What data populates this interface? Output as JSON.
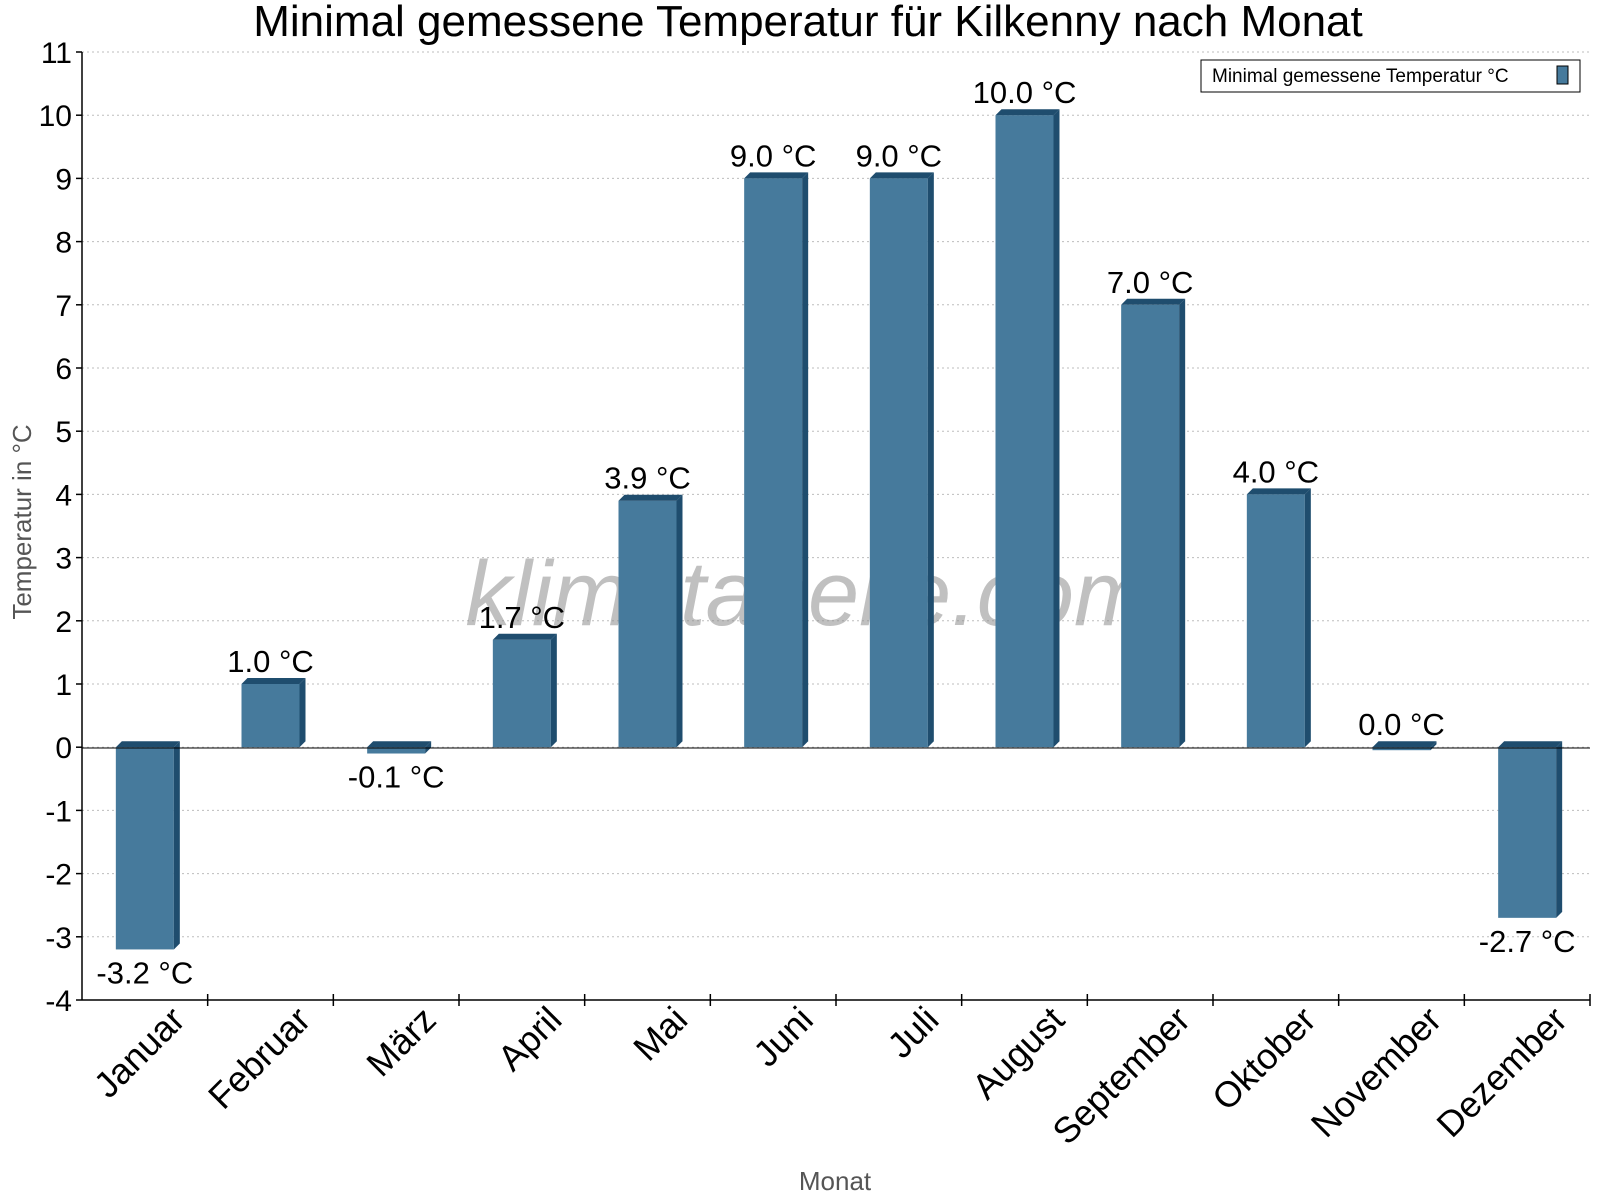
{
  "chart_data": {
    "type": "bar",
    "title": "Minimal gemessene Temperatur für Kilkenny nach Monat",
    "xlabel": "Monat",
    "ylabel": "Temperatur in °C",
    "categories": [
      "Januar",
      "Februar",
      "März",
      "April",
      "Mai",
      "Juni",
      "Juli",
      "August",
      "September",
      "Oktober",
      "November",
      "Dezember"
    ],
    "series": [
      {
        "name": "Minimal gemessene Temperatur °C",
        "values": [
          -3.2,
          1.0,
          -0.1,
          1.7,
          3.9,
          9.0,
          9.0,
          10.0,
          7.0,
          4.0,
          0.0,
          -2.7
        ],
        "labels": [
          "-3.2 °C",
          "1.0 °C",
          "-0.1 °C",
          "1.7 °C",
          "3.9 °C",
          "9.0 °C",
          "9.0 °C",
          "10.0 °C",
          "7.0 °C",
          "4.0 °C",
          "0.0 °C",
          "-2.7 °C"
        ]
      }
    ],
    "ylim": [
      -4,
      11
    ],
    "yticks": [
      "-4",
      "-3",
      "-2",
      "-1",
      "0",
      "1",
      "2",
      "3",
      "4",
      "5",
      "6",
      "7",
      "8",
      "9",
      "10",
      "11"
    ],
    "grid": true,
    "legend_position": "top-right",
    "colors": {
      "bar": "#467a9c",
      "bar_side": "#1f4d6e",
      "bar_top": "#1f4d6e"
    }
  },
  "watermark": "klimatabelle.com"
}
